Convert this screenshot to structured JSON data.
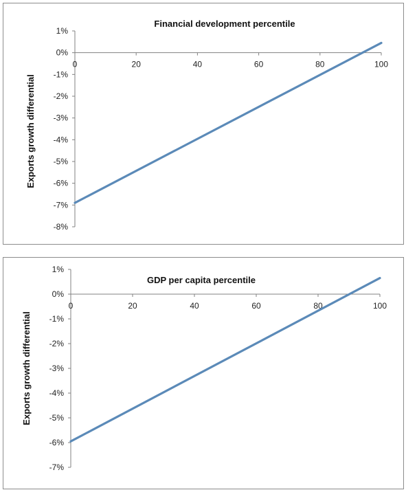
{
  "chart_data": [
    {
      "type": "line",
      "title": "Financial development percentile",
      "xlabel": "",
      "ylabel": "Exports growth differential",
      "x_ticks": [
        0,
        20,
        40,
        60,
        80,
        100
      ],
      "y_ticks": [
        "1%",
        "0%",
        "-1%",
        "-2%",
        "-3%",
        "-4%",
        "-5%",
        "-6%",
        "-7%",
        "-8%"
      ],
      "xlim": [
        0,
        100
      ],
      "ylim": [
        -8,
        1
      ],
      "grid": false,
      "legend": "none",
      "series": [
        {
          "x": [
            0,
            100
          ],
          "y": [
            -6.9,
            0.45
          ],
          "color": "#5b8ab8"
        }
      ]
    },
    {
      "type": "line",
      "title": "GDP per capita percentile",
      "xlabel": "",
      "ylabel": "Exports growth differential",
      "x_ticks": [
        0,
        20,
        40,
        60,
        80,
        100
      ],
      "y_ticks": [
        "1%",
        "0%",
        "-1%",
        "-2%",
        "-3%",
        "-4%",
        "-5%",
        "-6%",
        "-7%"
      ],
      "xlim": [
        0,
        100
      ],
      "ylim": [
        -7,
        1
      ],
      "grid": false,
      "legend": "none",
      "series": [
        {
          "x": [
            0,
            100
          ],
          "y": [
            -5.95,
            0.65
          ],
          "color": "#5b8ab8"
        }
      ]
    }
  ]
}
